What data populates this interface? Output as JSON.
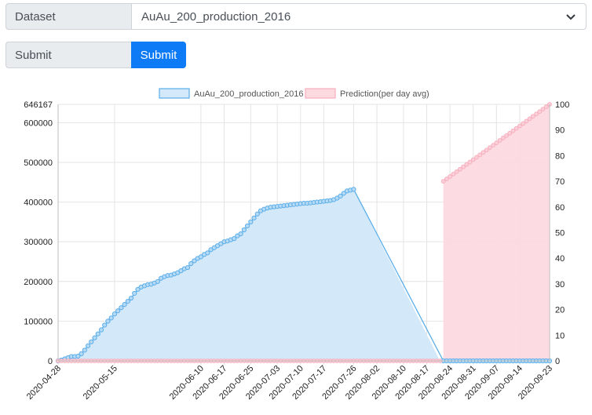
{
  "form": {
    "dataset_label": "Dataset",
    "dataset_value": "AuAu_200_production_2016",
    "submit_label": "Submit",
    "submit_button": "Submit"
  },
  "chart_data": {
    "type": "line",
    "legend_position": "top",
    "grid": true,
    "series": [
      {
        "name": "AuAu_200_production_2016",
        "axis": "left",
        "color": "#5aaeea",
        "fill": "#d3e8f8",
        "start_date": "2020-04-28",
        "end_date": "2020-08-21",
        "ymax": 646167,
        "values": [
          0,
          2000,
          5000,
          8000,
          11000,
          11000,
          12000,
          18000,
          27000,
          38000,
          48000,
          58000,
          68000,
          78000,
          90000,
          100000,
          108000,
          118000,
          126000,
          134000,
          142000,
          150000,
          158000,
          170000,
          180000,
          186000,
          189000,
          192000,
          193000,
          196000,
          200000,
          208000,
          212000,
          215000,
          216000,
          219000,
          222000,
          227000,
          232000,
          235000,
          245000,
          252000,
          258000,
          262000,
          268000,
          272000,
          280000,
          285000,
          290000,
          295000,
          300000,
          302000,
          305000,
          308000,
          315000,
          320000,
          330000,
          340000,
          350000,
          360000,
          370000,
          378000,
          382000,
          385000,
          387000,
          388000,
          389000,
          390000,
          391000,
          392000,
          393000,
          394000,
          395000,
          396000,
          397000,
          397000,
          398000,
          399000,
          400000,
          401000,
          402000,
          403000,
          404000,
          406000,
          410000,
          415000,
          422000,
          428000,
          430000,
          432000
        ]
      },
      {
        "name": "AuAu_200_production_2016",
        "axis": "left",
        "start_date": "2020-08-22",
        "end_date": "2020-09-23",
        "constant": 0
      },
      {
        "name": "Prediction(per day avg)",
        "axis": "right",
        "color": "#f7aebd",
        "fill": "#fdd9e0",
        "start_date": "2020-08-22",
        "end_date": "2020-09-23",
        "start_value": 70,
        "end_value": 100,
        "baseline": {
          "start_date": "2020-04-28",
          "end_date": "2020-08-21",
          "value": 0
        }
      }
    ],
    "y_left": {
      "min": 0,
      "max": 646167,
      "ticks": [
        0,
        100000,
        200000,
        300000,
        400000,
        500000,
        600000,
        646167
      ]
    },
    "y_right": {
      "min": 0,
      "max": 100,
      "ticks": [
        0,
        10,
        20,
        30,
        40,
        50,
        60,
        70,
        80,
        90,
        100
      ]
    },
    "x_ticks": [
      "2020-04-28",
      "2020-05-15",
      "2020-06-10",
      "2020-06-17",
      "2020-06-25",
      "2020-07-03",
      "2020-07-10",
      "2020-07-17",
      "2020-07-26",
      "2020-08-02",
      "2020-08-10",
      "2020-08-17",
      "2020-08-24",
      "2020-08-31",
      "2020-09-07",
      "2020-09-14",
      "2020-09-23"
    ]
  }
}
